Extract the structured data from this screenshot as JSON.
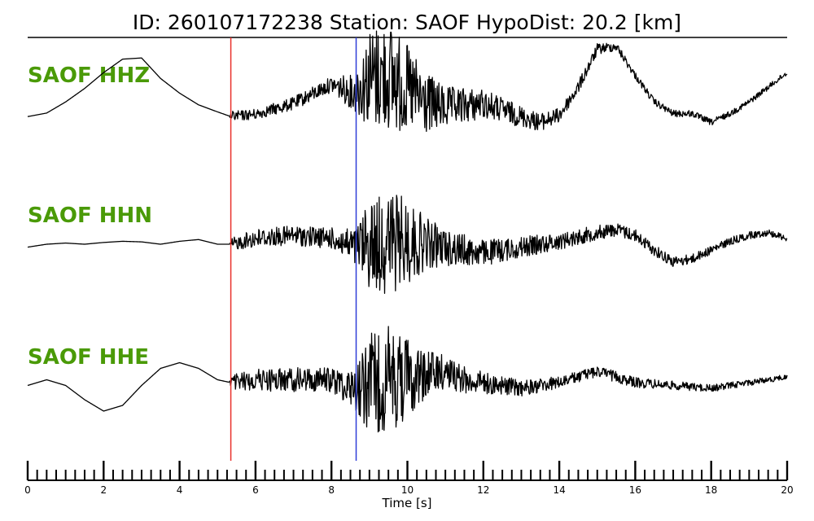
{
  "chart_data": {
    "type": "line",
    "title": "ID: 260107172238   Station: SAOF   HypoDist:    20.2 [km]",
    "xlabel": "Time [s]",
    "xlim": [
      0,
      20
    ],
    "x_major_ticks": [
      "0",
      "2",
      "4",
      "6",
      "8",
      "10",
      "12",
      "14",
      "16",
      "18",
      "20"
    ],
    "x_minor_step": 0.25,
    "label_color": "#4a9a07",
    "picks": [
      {
        "phase": "P",
        "time": 5.35,
        "color": "#e8302a"
      },
      {
        "phase": "S",
        "time": 8.65,
        "color": "#2f3ed8"
      }
    ],
    "series": [
      {
        "name": "SAOF HHZ",
        "envelope": [
          [
            0.0,
            0.1
          ],
          [
            0.5,
            0.04
          ],
          [
            1.0,
            -0.15
          ],
          [
            1.5,
            -0.38
          ],
          [
            2.0,
            -0.65
          ],
          [
            2.5,
            -0.88
          ],
          [
            3.0,
            -0.9
          ],
          [
            3.5,
            -0.55
          ],
          [
            4.0,
            -0.3
          ],
          [
            4.5,
            -0.1
          ],
          [
            5.0,
            0.02
          ],
          [
            5.35,
            0.1
          ],
          [
            6.0,
            0.06
          ],
          [
            7.0,
            -0.12
          ],
          [
            8.0,
            -0.45
          ],
          [
            8.6,
            -0.3
          ],
          [
            9.0,
            -0.55
          ],
          [
            9.5,
            -0.6
          ],
          [
            10.0,
            -0.35
          ],
          [
            10.5,
            -0.12
          ],
          [
            11.0,
            -0.05
          ],
          [
            12.0,
            -0.12
          ],
          [
            13.0,
            0.1
          ],
          [
            13.5,
            0.2
          ],
          [
            14.0,
            0.08
          ],
          [
            14.5,
            -0.4
          ],
          [
            15.0,
            -1.05
          ],
          [
            15.5,
            -1.1
          ],
          [
            16.0,
            -0.6
          ],
          [
            16.5,
            -0.15
          ],
          [
            17.0,
            0.05
          ],
          [
            17.5,
            0.05
          ],
          [
            18.0,
            0.2
          ],
          [
            18.5,
            0.05
          ],
          [
            19.0,
            -0.15
          ],
          [
            19.5,
            -0.4
          ],
          [
            20.0,
            -0.65
          ]
        ],
        "noise": [
          [
            0.0,
            0.0
          ],
          [
            5.3,
            0.0
          ],
          [
            5.4,
            0.1
          ],
          [
            6.0,
            0.1
          ],
          [
            8.0,
            0.15
          ],
          [
            8.6,
            0.35
          ],
          [
            9.0,
            0.95
          ],
          [
            9.5,
            1.05
          ],
          [
            10.0,
            0.85
          ],
          [
            10.5,
            0.6
          ],
          [
            11.0,
            0.4
          ],
          [
            12.0,
            0.28
          ],
          [
            13.0,
            0.2
          ],
          [
            14.0,
            0.14
          ],
          [
            16.0,
            0.07
          ],
          [
            20.0,
            0.05
          ]
        ]
      },
      {
        "name": "SAOF HHN",
        "envelope": [
          [
            0.0,
            0.05
          ],
          [
            0.5,
            0.0
          ],
          [
            1.0,
            -0.02
          ],
          [
            1.5,
            0.0
          ],
          [
            2.0,
            -0.03
          ],
          [
            2.5,
            -0.05
          ],
          [
            3.0,
            -0.04
          ],
          [
            3.5,
            0.0
          ],
          [
            4.0,
            -0.05
          ],
          [
            4.5,
            -0.08
          ],
          [
            5.0,
            0.0
          ],
          [
            5.35,
            0.0
          ],
          [
            6.0,
            -0.1
          ],
          [
            7.0,
            -0.15
          ],
          [
            8.0,
            -0.1
          ],
          [
            8.6,
            0.05
          ],
          [
            9.0,
            0.0
          ],
          [
            10.0,
            -0.05
          ],
          [
            11.0,
            0.05
          ],
          [
            12.0,
            0.15
          ],
          [
            13.0,
            0.05
          ],
          [
            14.0,
            -0.05
          ],
          [
            15.0,
            -0.2
          ],
          [
            15.5,
            -0.25
          ],
          [
            16.0,
            -0.15
          ],
          [
            16.5,
            0.1
          ],
          [
            17.0,
            0.3
          ],
          [
            17.5,
            0.25
          ],
          [
            18.0,
            0.1
          ],
          [
            18.5,
            -0.05
          ],
          [
            19.0,
            -0.15
          ],
          [
            19.5,
            -0.2
          ],
          [
            20.0,
            -0.1
          ]
        ],
        "noise": [
          [
            0.0,
            0.0
          ],
          [
            5.3,
            0.0
          ],
          [
            5.4,
            0.12
          ],
          [
            6.0,
            0.18
          ],
          [
            8.0,
            0.2
          ],
          [
            8.6,
            0.35
          ],
          [
            9.0,
            0.85
          ],
          [
            9.5,
            1.0
          ],
          [
            10.0,
            0.8
          ],
          [
            10.5,
            0.5
          ],
          [
            11.0,
            0.35
          ],
          [
            12.0,
            0.25
          ],
          [
            13.0,
            0.2
          ],
          [
            14.0,
            0.16
          ],
          [
            16.0,
            0.12
          ],
          [
            18.0,
            0.08
          ],
          [
            20.0,
            0.06
          ]
        ]
      },
      {
        "name": "SAOF HHE",
        "envelope": [
          [
            0.0,
            0.05
          ],
          [
            0.5,
            -0.05
          ],
          [
            1.0,
            0.05
          ],
          [
            1.5,
            0.3
          ],
          [
            2.0,
            0.5
          ],
          [
            2.5,
            0.4
          ],
          [
            3.0,
            0.05
          ],
          [
            3.5,
            -0.25
          ],
          [
            4.0,
            -0.35
          ],
          [
            4.5,
            -0.25
          ],
          [
            5.0,
            -0.05
          ],
          [
            5.35,
            0.0
          ],
          [
            6.0,
            -0.05
          ],
          [
            7.0,
            -0.05
          ],
          [
            8.0,
            -0.05
          ],
          [
            8.6,
            0.1
          ],
          [
            9.0,
            0.0
          ],
          [
            10.0,
            -0.1
          ],
          [
            11.0,
            -0.2
          ],
          [
            11.5,
            -0.05
          ],
          [
            12.0,
            0.0
          ],
          [
            13.0,
            0.1
          ],
          [
            14.0,
            0.0
          ],
          [
            14.5,
            -0.1
          ],
          [
            15.0,
            -0.2
          ],
          [
            15.5,
            -0.1
          ],
          [
            16.0,
            0.0
          ],
          [
            17.0,
            0.05
          ],
          [
            18.0,
            0.1
          ],
          [
            19.0,
            0.0
          ],
          [
            20.0,
            -0.1
          ]
        ],
        "noise": [
          [
            0.0,
            0.0
          ],
          [
            5.3,
            0.0
          ],
          [
            5.4,
            0.15
          ],
          [
            6.0,
            0.22
          ],
          [
            8.0,
            0.25
          ],
          [
            8.6,
            0.4
          ],
          [
            9.0,
            0.95
          ],
          [
            9.5,
            1.05
          ],
          [
            10.0,
            0.8
          ],
          [
            10.5,
            0.5
          ],
          [
            11.0,
            0.32
          ],
          [
            12.0,
            0.22
          ],
          [
            13.0,
            0.16
          ],
          [
            14.0,
            0.12
          ],
          [
            16.0,
            0.1
          ],
          [
            18.0,
            0.07
          ],
          [
            20.0,
            0.05
          ]
        ]
      }
    ]
  }
}
